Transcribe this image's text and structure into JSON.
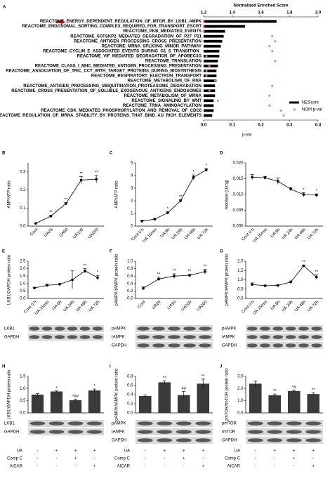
{
  "chart_data": [
    {
      "panel": "A",
      "type": "hbar",
      "categories": [
        "REACTOME_ENERGY_DEPENDENT_REGULATION_OF_MTOR_BY_LKB1_AMPK",
        "REACTOME_ENDOSOMAL_SORTING_COMPLEX_REQUIRED_FOR_TRANSPORT_ESCRT",
        "REACTOME_PKB_MEDIATED_EVENTS",
        "REACTOME_SCFSKP2_MEDIATED_DEGRADATION_OF_P27_P21",
        "REACTOME_ANTIGEN_PROCESSING_CROSS_PRESENTATION",
        "REACTOME_MRNA_SPLICING_MINOR_PATHWAY",
        "REACTOME_CYCLIN_E_ASSOCIATED_EVENTS_DURING_G1_S_TRANSITION_",
        "REACTOME_VIF_MEDIATED_DEGRADATION_OF_APOBEC3G",
        "REACTOME_TRANSLATION",
        "REACTOME_CLASS_I_MHC_MEDIATED_ANTIGEN_PROCESSING_PRESENTATION",
        "REACTOME_ASSOCIATION_OF_TRIC_CCT_WITH_TARGET_PROTEINS_DURING_BIOSYNTHESIS",
        "REACTOME_RESPIRATORY_ELECTRON_TRANSPORT",
        "REACTOME_METABOLISM_OF_RNA",
        "REACTOME_ANTIGEN_PROCESSING_UBIQUITINATION_PROTEASOME_DEGRADATION",
        "REACTOME_CROSS_PRESENTATION_OF_SOLUBLE_EXOGENOUS_ANTIGENS_ENDOSOMES",
        "REACTOME_METABOLISM_OF_MRNA",
        "REACTOME_SIGNALING_BY_WNT",
        "REACTOME_TRNA_AMINOACYLATION",
        "REACTOME_CDK_MEDIATED_PHOSPHORYLATION_AND_REMOVAL_OF_CDC6",
        "REACTOME_REGULATION_OF_MRNA_STABILITY_BY_PROTEINS_THAT_BIND_AU_RICH_ELEMENTS"
      ],
      "series": [
        {
          "name": "NEScore",
          "color": "#000000",
          "values": [
            1.71,
            1.49,
            1.35,
            1.34,
            1.33,
            1.32,
            1.31,
            1.31,
            1.3,
            1.3,
            1.29,
            1.29,
            1.29,
            1.28,
            1.28,
            1.28,
            1.27,
            1.27,
            1.27,
            1.26
          ]
        },
        {
          "name": "NOM p-val",
          "color": "#f08080",
          "axis": "x2",
          "values": [
            0,
            0,
            0,
            0.24,
            0.25,
            0.23,
            0.24,
            0.01,
            0.25,
            0.02,
            0.01,
            0.01,
            0.04,
            0.24,
            0.02,
            0.23,
            0.05,
            0.23,
            0.27,
            0.28
          ]
        }
      ],
      "xlabel": "Normalized Enriched Score",
      "xlim": [
        1.2,
        2.0
      ],
      "xticks": [
        1.2,
        1.4,
        1.6,
        1.8,
        {
          "value": 2.0,
          "label": "2.0"
        }
      ],
      "x2label": "p-val",
      "x2lim": [
        0,
        0.4
      ],
      "x2ticks": [
        {
          "value": 0,
          "label": "0.0"
        },
        0.1,
        0.2,
        0.3,
        0.4
      ]
    },
    {
      "panel": "B",
      "type": "line",
      "ylabel": "AMP/ATP ratio",
      "categories": [
        "Cont",
        "UA25",
        "UA50",
        "UA100",
        "UA200"
      ],
      "values": [
        0.015,
        0.055,
        0.125,
        0.255,
        0.26
      ],
      "errors": [
        0.002,
        0.005,
        0.005,
        0.02,
        0.02
      ],
      "significance": [
        null,
        "**",
        "**",
        "**",
        "**"
      ],
      "ylim": [
        0,
        0.35
      ],
      "yticks": [
        {
          "value": 0,
          "label": "0.0"
        },
        0.1,
        0.2,
        0.3
      ]
    },
    {
      "panel": "C",
      "type": "line",
      "ylabel": "AMP/ATP ratio",
      "categories": [
        "Cont 0 h",
        "UA 15min",
        "UA 6h",
        "UA 24h",
        "UA 48h",
        "UA 72h"
      ],
      "values": [
        0.4,
        0.55,
        1.05,
        2.0,
        3.85,
        4.45
      ],
      "errors": [
        0.05,
        0.05,
        0.08,
        0.1,
        0.2,
        0.1
      ],
      "significance": [
        null,
        null,
        "*",
        "**",
        "*",
        "*"
      ],
      "ylim": [
        0,
        5
      ],
      "yticks": [
        0,
        1,
        2,
        3,
        4,
        5
      ]
    },
    {
      "panel": "D",
      "type": "line",
      "ylabel": "Aldolase (U/mg)",
      "categories": [
        "Cont 0 h",
        "UA 15min",
        "UA 6h",
        "UA 24h",
        "UA 48h",
        "UA 72h"
      ],
      "values": [
        0.0155,
        0.0153,
        0.0142,
        0.0117,
        0.01,
        0.0098
      ],
      "errors": [
        0.0008,
        0.0004,
        0.001,
        0.0005,
        0.0006,
        0.0004
      ],
      "significance": [
        null,
        null,
        null,
        null,
        "*",
        "*"
      ],
      "ylim": [
        0,
        0.02
      ],
      "yticks": [
        {
          "value": 0,
          "label": "0.000"
        },
        0.005,
        {
          "value": 0.01,
          "label": "0.010"
        },
        0.015,
        {
          "value": 0.02,
          "label": "0.020"
        }
      ]
    },
    {
      "panel": "E",
      "type": "line",
      "ylabel": "LKB1/GAPDH protein ratio",
      "categories": [
        "Cont 0 h",
        "UA 15min",
        "UA 6h",
        "UA 24h",
        "UA 48h",
        "UA 72h"
      ],
      "values": [
        0.7,
        0.88,
        0.95,
        1.25,
        1.85,
        1.4
      ],
      "errors": [
        0.05,
        0.08,
        0.05,
        0.6,
        0.15,
        0.15
      ],
      "significance": [
        null,
        null,
        null,
        null,
        "**",
        "*"
      ],
      "ylim": [
        0,
        2.5
      ],
      "yticks": [
        {
          "value": 0,
          "label": "0.0"
        },
        0.5,
        {
          "value": 1,
          "label": "1.0"
        },
        1.5,
        {
          "value": 2,
          "label": "2.0"
        },
        2.5
      ],
      "blots": [
        "LKB1",
        "GAPDH"
      ]
    },
    {
      "panel": "F",
      "type": "line",
      "ylabel": "pAMPK/tAMPK protein ratio",
      "categories": [
        "Cont",
        "UA25",
        "UA50",
        "UA100",
        "UA200"
      ],
      "values": [
        0.27,
        0.52,
        0.6,
        0.62,
        0.72
      ],
      "errors": [
        0.04,
        0.05,
        0.06,
        0.03,
        0.06
      ],
      "significance": [
        null,
        "**",
        "**",
        "**",
        "**"
      ],
      "ylim": [
        0,
        1.0
      ],
      "yticks": [
        {
          "value": 0,
          "label": "0.0"
        },
        0.2,
        0.4,
        0.6,
        0.8,
        {
          "value": 1,
          "label": "1.0"
        }
      ],
      "blots": [
        "pAMPK",
        "tAMPK",
        "GAPDH"
      ]
    },
    {
      "panel": "G",
      "type": "line",
      "ylabel": "pAMPK/tAMPK protein ratio",
      "categories": [
        "Cont 0 h",
        "UA 15min",
        "UA 6h",
        "UA 24h",
        "UA 48h",
        "UA 72h"
      ],
      "values": [
        0.75,
        0.68,
        0.7,
        0.88,
        1.75,
        1.15
      ],
      "errors": [
        0.08,
        0.03,
        0.03,
        0.06,
        0.05,
        0.12
      ],
      "significance": [
        null,
        null,
        null,
        null,
        "**",
        "**"
      ],
      "ylim": [
        0,
        2.0
      ],
      "yticks": [
        {
          "value": 0,
          "label": "0.0"
        },
        0.5,
        {
          "value": 1,
          "label": "1.0"
        },
        1.5,
        {
          "value": 2,
          "label": "2.0"
        }
      ],
      "blots": [
        "pAMPK",
        "tAMPK",
        "GAPDH"
      ]
    },
    {
      "panel": "H",
      "type": "bar",
      "ylabel": "LKB1/GAPDH protein ratio",
      "values": [
        0.75,
        0.88,
        0.52,
        0.92
      ],
      "errors": [
        0.05,
        0.02,
        0.04,
        0.06
      ],
      "significance": [
        null,
        "*",
        "*##",
        "*"
      ],
      "ylim": [
        0,
        1.5
      ],
      "yticks": [
        {
          "value": 0,
          "label": "0.0"
        },
        0.5,
        {
          "value": 1,
          "label": "1.0"
        },
        1.5
      ],
      "blots": [
        "LKB1",
        "GAPDH"
      ],
      "treatments": [
        {
          "name": "UA",
          "values": [
            "-",
            "+",
            "+",
            "+"
          ]
        },
        {
          "name": "Comp C",
          "values": [
            "-",
            "-",
            "+",
            "-"
          ]
        },
        {
          "name": "AICAR",
          "values": [
            "-",
            "-",
            "-",
            "+"
          ]
        }
      ]
    },
    {
      "panel": "I",
      "type": "bar",
      "ylabel": "pAMPK/tAMPK protein ratio",
      "values": [
        0.37,
        0.67,
        0.39,
        0.64
      ],
      "errors": [
        0.02,
        0.03,
        0.08,
        0.1
      ],
      "significance": [
        null,
        "**",
        "##",
        "**"
      ],
      "ylim": [
        0,
        0.8
      ],
      "yticks": [
        {
          "value": 0,
          "label": "0.0"
        },
        0.2,
        0.4,
        0.6,
        0.8
      ],
      "blots": [
        "pAMPK",
        "tAMPK",
        "GAPDH"
      ],
      "treatments": [
        {
          "name": "UA",
          "values": [
            "-",
            "+",
            "+",
            "+"
          ]
        },
        {
          "name": "Comp C",
          "values": [
            "-",
            "-",
            "+",
            "-"
          ]
        },
        {
          "name": "AICAR",
          "values": [
            "-",
            "-",
            "-",
            "+"
          ]
        }
      ]
    },
    {
      "panel": "J",
      "type": "bar",
      "ylabel": "pmTOR/tmTOR protein ratio",
      "values": [
        2.4,
        1.45,
        1.8,
        1.55
      ],
      "errors": [
        0.2,
        0.1,
        0.05,
        0.1
      ],
      "significance": [
        null,
        "**",
        "*#",
        "**"
      ],
      "ylim": [
        0,
        3.0
      ],
      "yticks": [
        {
          "value": 0,
          "label": "0.0"
        },
        {
          "value": 1,
          "label": "1.0"
        },
        {
          "value": 2,
          "label": "2.0"
        },
        {
          "value": 3,
          "label": "3.0"
        }
      ],
      "blots": [
        "pmTOR",
        "tmTOR",
        "GAPDH"
      ],
      "treatments": [
        {
          "name": "UA",
          "values": [
            "-",
            "+",
            "+",
            "+"
          ]
        },
        {
          "name": "Comp C",
          "values": [
            "-",
            "-",
            "+",
            "-"
          ]
        },
        {
          "name": "AICAR",
          "values": [
            "-",
            "-",
            "-",
            "+"
          ]
        }
      ]
    }
  ]
}
